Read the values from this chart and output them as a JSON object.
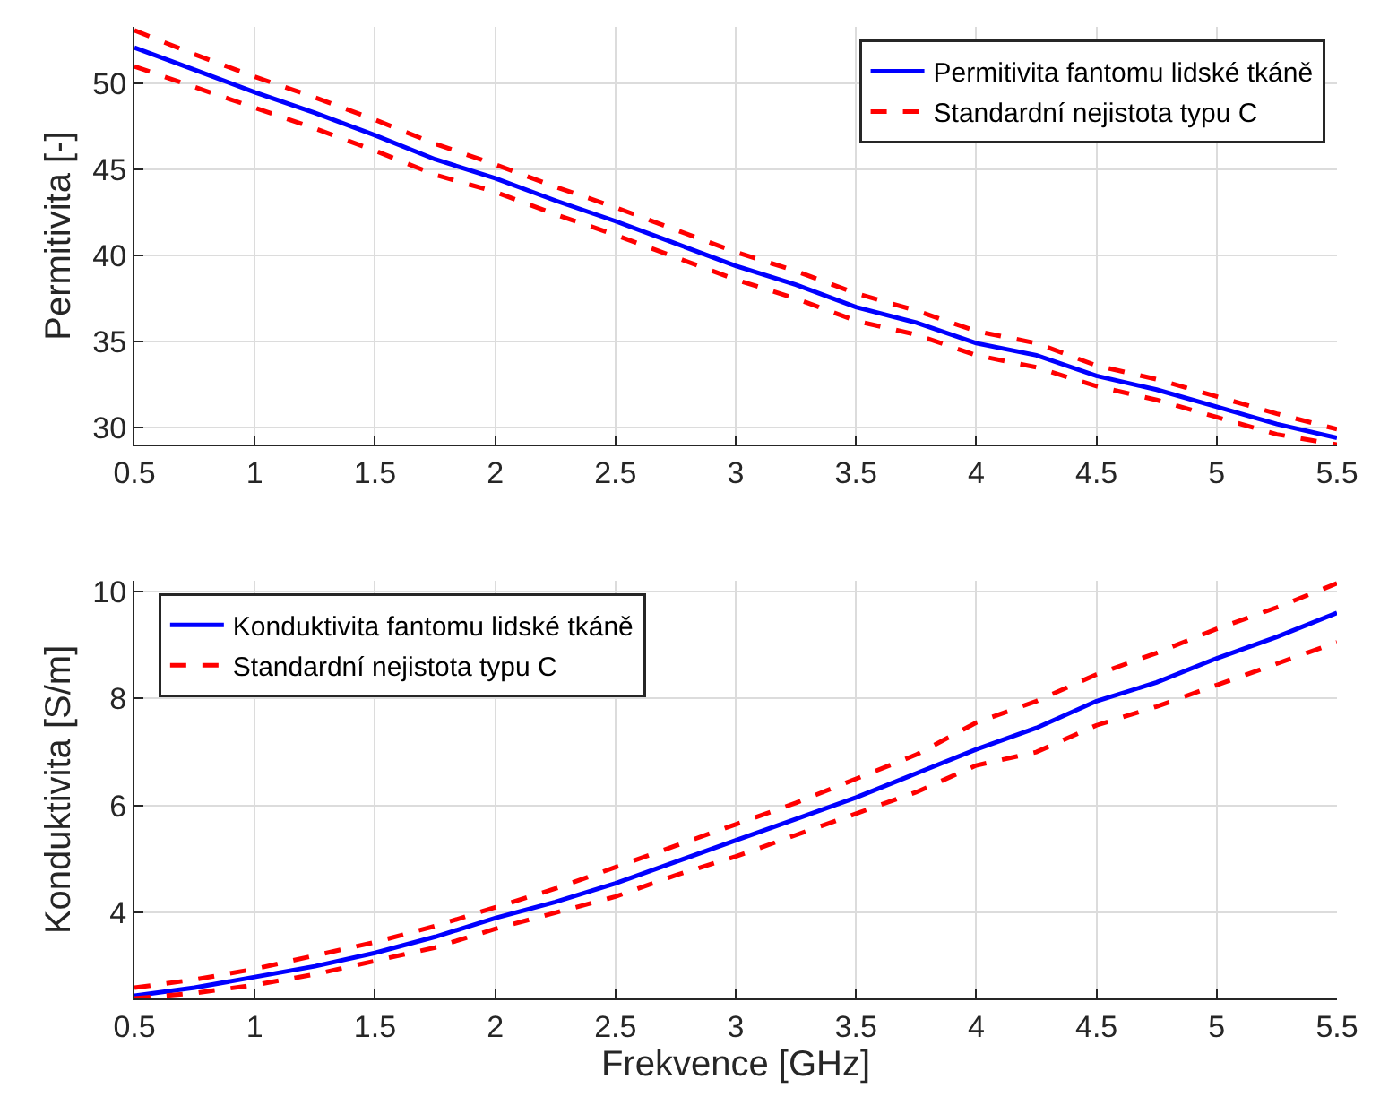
{
  "chart_data": [
    {
      "type": "line",
      "ylabel": "Permitivita [-]",
      "x": [
        0.5,
        0.75,
        1,
        1.25,
        1.5,
        1.75,
        2,
        2.25,
        2.5,
        2.75,
        3,
        3.25,
        3.5,
        3.75,
        4,
        4.25,
        4.5,
        4.75,
        5,
        5.25,
        5.5
      ],
      "series": [
        {
          "name": "Permitivita fantomu lidské tkáně",
          "color": "#0000ff",
          "line_style": "solid",
          "values": [
            52.1,
            50.8,
            49.5,
            48.3,
            47.0,
            45.6,
            44.5,
            43.2,
            42.0,
            40.7,
            39.4,
            38.3,
            37.0,
            36.1,
            34.9,
            34.2,
            33.0,
            32.2,
            31.2,
            30.2,
            29.4
          ]
        },
        {
          "name": "Standardní nejistota typu C",
          "color": "#ff0000",
          "line_style": "dashed",
          "values": [
            53.1,
            51.7,
            50.4,
            49.2,
            47.9,
            46.5,
            45.3,
            44.0,
            42.8,
            41.5,
            40.2,
            39.1,
            37.8,
            36.8,
            35.6,
            34.9,
            33.6,
            32.8,
            31.8,
            30.8,
            29.9
          ]
        },
        {
          "color": "#ff0000",
          "line_style": "dashed",
          "values": [
            51.0,
            49.8,
            48.6,
            47.4,
            46.1,
            44.7,
            43.7,
            42.4,
            41.2,
            39.9,
            38.6,
            37.5,
            36.2,
            35.4,
            34.2,
            33.5,
            32.4,
            31.6,
            30.6,
            29.6,
            29.0
          ]
        }
      ],
      "xlim": [
        0.5,
        5.5
      ],
      "xticks": [
        0.5,
        1,
        1.5,
        2,
        2.5,
        3,
        3.5,
        4,
        4.5,
        5,
        5.5
      ],
      "ylim": [
        29,
        53.3
      ],
      "yticks": [
        30,
        35,
        40,
        45,
        50
      ],
      "grid": true,
      "legend": "top right"
    },
    {
      "type": "line",
      "xlabel": "Frekvence [GHz]",
      "ylabel": "Konduktivita [S/m]",
      "x": [
        0.5,
        0.75,
        1,
        1.25,
        1.5,
        1.75,
        2,
        2.25,
        2.5,
        2.75,
        3,
        3.25,
        3.5,
        3.75,
        4,
        4.25,
        4.5,
        4.75,
        5,
        5.25,
        5.5
      ],
      "series": [
        {
          "name": "Konduktivita fantomu lidské tkáně",
          "color": "#0000ff",
          "line_style": "solid",
          "values": [
            2.45,
            2.6,
            2.8,
            3.0,
            3.25,
            3.55,
            3.9,
            4.2,
            4.55,
            4.95,
            5.35,
            5.75,
            6.15,
            6.6,
            7.05,
            7.45,
            7.95,
            8.3,
            8.75,
            9.15,
            9.6
          ]
        },
        {
          "name": "Standardní nejistota typu C",
          "color": "#ff0000",
          "line_style": "dashed",
          "values": [
            2.6,
            2.75,
            2.95,
            3.2,
            3.45,
            3.75,
            4.1,
            4.45,
            4.85,
            5.25,
            5.65,
            6.05,
            6.5,
            6.95,
            7.55,
            7.95,
            8.45,
            8.85,
            9.3,
            9.7,
            10.15
          ]
        },
        {
          "color": "#ff0000",
          "line_style": "dashed",
          "values": [
            2.4,
            2.5,
            2.65,
            2.85,
            3.1,
            3.35,
            3.7,
            4.0,
            4.3,
            4.7,
            5.05,
            5.45,
            5.85,
            6.25,
            6.75,
            7.0,
            7.5,
            7.85,
            8.25,
            8.65,
            9.05
          ]
        }
      ],
      "xlim": [
        0.5,
        5.5
      ],
      "xticks": [
        0.5,
        1,
        1.5,
        2,
        2.5,
        3,
        3.5,
        4,
        4.5,
        5,
        5.5
      ],
      "ylim": [
        2.4,
        10.2
      ],
      "yticks": [
        4,
        6,
        8,
        10
      ],
      "grid": true,
      "legend": "top left"
    }
  ]
}
